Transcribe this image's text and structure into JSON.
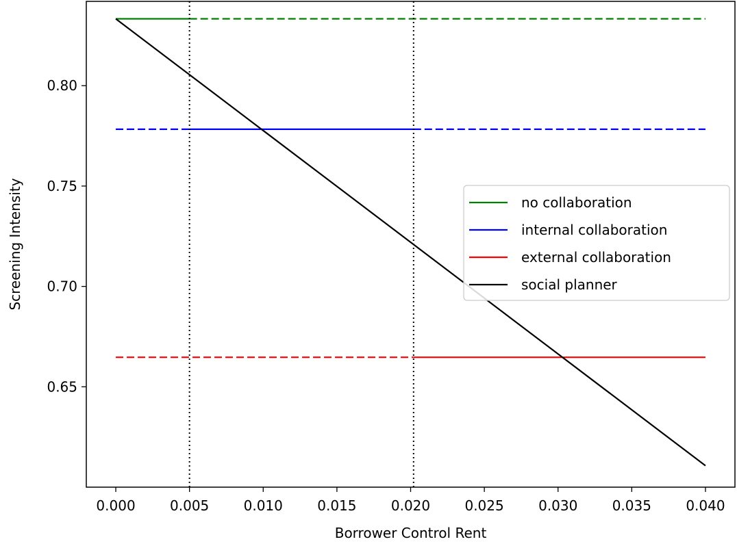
{
  "chart_data": {
    "type": "line",
    "title": "",
    "xlabel": "Borrower Control Rent",
    "ylabel": "Screening Intensity",
    "xlim": [
      -0.002,
      0.042
    ],
    "ylim": [
      0.6,
      0.842
    ],
    "xticks": [
      0.0,
      0.005,
      0.01,
      0.015,
      0.02,
      0.025,
      0.03,
      0.035,
      0.04
    ],
    "xtick_labels": [
      "0.000",
      "0.005",
      "0.010",
      "0.015",
      "0.020",
      "0.025",
      "0.030",
      "0.035",
      "0.040"
    ],
    "yticks": [
      0.65,
      0.7,
      0.75,
      0.8
    ],
    "ytick_labels": [
      "0.65",
      "0.70",
      "0.75",
      "0.80"
    ],
    "grid": false,
    "legend_placement": "center-right",
    "vertical_markers": [
      0.005,
      0.0202
    ],
    "series": [
      {
        "name": "no collaboration",
        "color": "#008000",
        "segments": [
          {
            "x": [
              0.0,
              0.005
            ],
            "y": [
              0.8333,
              0.8333
            ],
            "style": "solid"
          },
          {
            "x": [
              0.005,
              0.04
            ],
            "y": [
              0.8333,
              0.8333
            ],
            "style": "dashed"
          }
        ]
      },
      {
        "name": "internal collaboration",
        "color": "#0000ff",
        "segments": [
          {
            "x": [
              0.0,
              0.005
            ],
            "y": [
              0.7783,
              0.7783
            ],
            "style": "dashed"
          },
          {
            "x": [
              0.005,
              0.0202
            ],
            "y": [
              0.7783,
              0.7783
            ],
            "style": "solid"
          },
          {
            "x": [
              0.0202,
              0.04
            ],
            "y": [
              0.7783,
              0.7783
            ],
            "style": "dashed"
          }
        ]
      },
      {
        "name": "external collaboration",
        "color": "#ff0000",
        "segments": [
          {
            "x": [
              0.0,
              0.0202
            ],
            "y": [
              0.6647,
              0.6647
            ],
            "style": "dashed"
          },
          {
            "x": [
              0.0202,
              0.04
            ],
            "y": [
              0.6647,
              0.6647
            ],
            "style": "solid"
          }
        ]
      },
      {
        "name": "social planner",
        "color": "#000000",
        "segments": [
          {
            "x": [
              0.0,
              0.04
            ],
            "y": [
              0.8333,
              0.6107
            ],
            "style": "solid"
          }
        ]
      }
    ]
  }
}
